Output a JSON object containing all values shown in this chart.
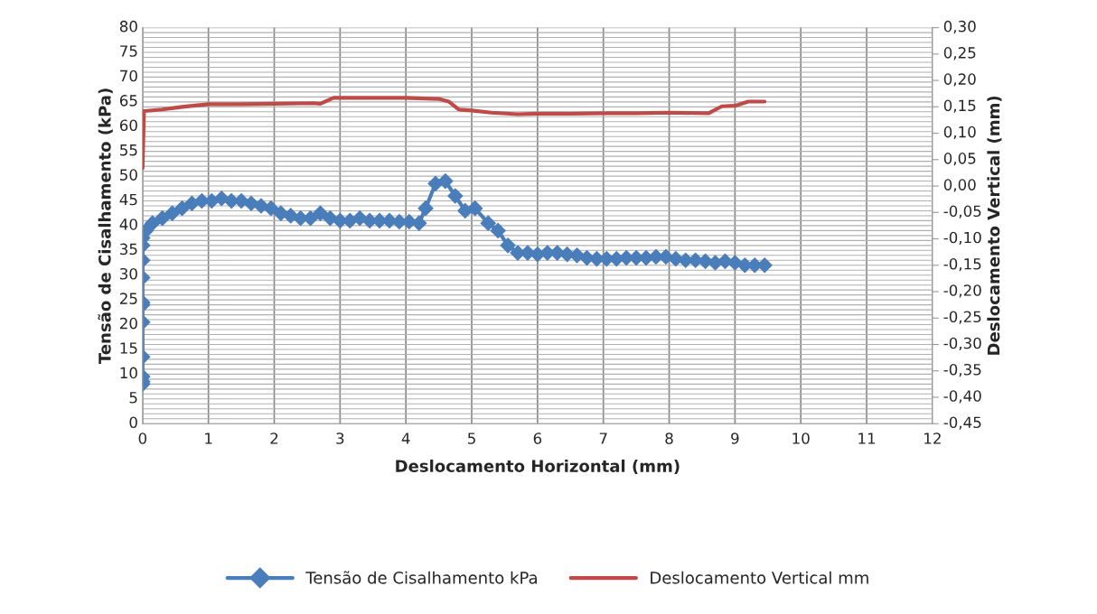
{
  "chart_data": {
    "type": "line",
    "xlabel": "Deslocamento Horizontal (mm)",
    "ylabel": "Tensão de Cisalhamento (kPa)",
    "y2label": "Deslocamento Vertical (mm)",
    "xlim": [
      0,
      12
    ],
    "xticks": [
      0,
      1,
      2,
      3,
      4,
      5,
      6,
      7,
      8,
      9,
      10,
      11,
      12
    ],
    "ylim": [
      0,
      80
    ],
    "yticks": [
      0,
      5,
      10,
      15,
      20,
      25,
      30,
      35,
      40,
      45,
      50,
      55,
      60,
      65,
      70,
      75,
      80
    ],
    "y2lim": [
      -0.45,
      0.3
    ],
    "y2ticks": [
      {
        "value": -0.45,
        "label": "-0,45"
      },
      {
        "value": -0.4,
        "label": "-0,40"
      },
      {
        "value": -0.35,
        "label": "-0,35"
      },
      {
        "value": -0.3,
        "label": "-0,30"
      },
      {
        "value": -0.25,
        "label": "-0,25"
      },
      {
        "value": -0.2,
        "label": "-0,20"
      },
      {
        "value": -0.15,
        "label": "-0,15"
      },
      {
        "value": -0.1,
        "label": "-0,10"
      },
      {
        "value": -0.05,
        "label": "-0,05"
      },
      {
        "value": 0.0,
        "label": "0,00"
      },
      {
        "value": 0.05,
        "label": "0,05"
      },
      {
        "value": 0.1,
        "label": "0,10"
      },
      {
        "value": 0.15,
        "label": "0,15"
      },
      {
        "value": 0.2,
        "label": "0,20"
      },
      {
        "value": 0.25,
        "label": "0,25"
      },
      {
        "value": 0.3,
        "label": "0,30"
      }
    ],
    "grid": true,
    "legend": "bottom",
    "series": [
      {
        "name": "Tensão de Cisalhamento kPa",
        "color": "#4a7ebb",
        "marker": "diamond",
        "x": [
          0,
          0,
          0,
          0,
          0,
          0,
          0,
          0,
          0,
          0,
          0,
          0.05,
          0.15,
          0.3,
          0.45,
          0.6,
          0.75,
          0.9,
          1.05,
          1.2,
          1.35,
          1.5,
          1.65,
          1.8,
          1.95,
          2.1,
          2.25,
          2.4,
          2.55,
          2.7,
          2.85,
          3.0,
          3.15,
          3.3,
          3.45,
          3.6,
          3.75,
          3.9,
          4.05,
          4.2,
          4.3,
          4.45,
          4.6,
          4.75,
          4.9,
          5.05,
          5.25,
          5.4,
          5.55,
          5.7,
          5.85,
          6.0,
          6.15,
          6.3,
          6.45,
          6.6,
          6.75,
          6.9,
          7.05,
          7.2,
          7.35,
          7.5,
          7.65,
          7.8,
          7.95,
          8.1,
          8.25,
          8.4,
          8.55,
          8.7,
          8.85,
          9.0,
          9.15,
          9.3,
          9.45
        ],
        "values": [
          8,
          8.5,
          9.5,
          13.5,
          20.5,
          24,
          24.5,
          29.5,
          33,
          36,
          37.5,
          39,
          40.5,
          41.5,
          42.5,
          43.5,
          44.5,
          45,
          45,
          45.5,
          45,
          45,
          44.5,
          44,
          43.5,
          42.5,
          42,
          41.5,
          41.5,
          42.5,
          41.5,
          41,
          41,
          41.5,
          41,
          41,
          41,
          40.8,
          40.8,
          40.5,
          43.5,
          48.5,
          49,
          46,
          43,
          43.5,
          40.5,
          39,
          36,
          34.5,
          34.5,
          34.2,
          34.5,
          34.5,
          34.2,
          34,
          33.5,
          33.3,
          33.3,
          33.3,
          33.5,
          33.5,
          33.5,
          33.7,
          33.7,
          33.3,
          33,
          33,
          32.8,
          32.5,
          32.8,
          32.5,
          32,
          32,
          32
        ]
      },
      {
        "name": "Deslocamento Vertical mm",
        "color": "#be4b48",
        "axis": "y2",
        "marker": "none",
        "x": [
          0,
          0.02,
          0.3,
          0.6,
          1.0,
          1.5,
          2.0,
          2.6,
          2.7,
          2.9,
          3.5,
          4.0,
          4.5,
          4.65,
          4.8,
          5.0,
          5.3,
          5.7,
          6.0,
          6.5,
          7.0,
          7.5,
          8.0,
          8.6,
          8.8,
          9.0,
          9.2,
          9.45
        ],
        "values": [
          0.034,
          0.142,
          0.145,
          0.15,
          0.155,
          0.155,
          0.156,
          0.157,
          0.156,
          0.167,
          0.167,
          0.167,
          0.165,
          0.16,
          0.145,
          0.143,
          0.139,
          0.136,
          0.137,
          0.137,
          0.138,
          0.138,
          0.139,
          0.138,
          0.151,
          0.152,
          0.16,
          0.16
        ]
      }
    ]
  }
}
